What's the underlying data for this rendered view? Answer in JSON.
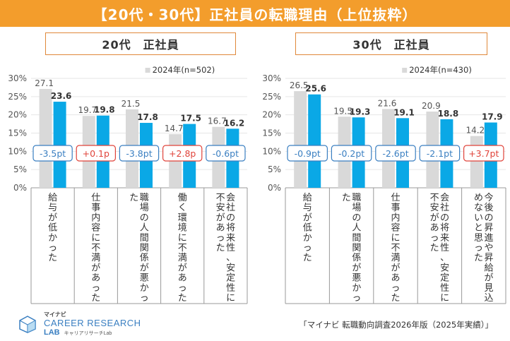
{
  "header": {
    "title": "【20代・30代】正社員の転職理由（上位抜粋）"
  },
  "colors": {
    "bar_2024": "#d9d9d9",
    "bar_2025": "#0aa8e6",
    "diff_negative": "#3a7fc1",
    "diff_positive": "#e0433a",
    "axis": "#999999",
    "header_bg": "#f39d2c"
  },
  "chart_data": [
    {
      "type": "bar",
      "title": "20代　正社員",
      "legend_label": "2024年(n=502)",
      "legend_placement": "top-right",
      "categories": [
        "給与が低かった",
        "仕事内容に不満があった",
        "職場の人間関係が悪かった",
        "働く環境に不満があった",
        "会社の将来性、安定性に不安があった"
      ],
      "series": [
        {
          "name": "2024年(n=502)",
          "values": [
            27.1,
            19.7,
            21.5,
            14.7,
            16.7
          ]
        },
        {
          "values": [
            23.6,
            19.8,
            17.8,
            17.5,
            16.2
          ]
        }
      ],
      "differences": [
        "-3.5pt",
        "+0.1p",
        "-3.8pt",
        "+2.8p",
        "-0.6pt"
      ],
      "yticks": [
        "0%",
        "5%",
        "10%",
        "15%",
        "20%",
        "25%",
        "30%"
      ],
      "ylim": [
        0,
        30
      ]
    },
    {
      "type": "bar",
      "title": "30代　正社員",
      "legend_label": "2024年(n=430)",
      "legend_placement": "top-right",
      "categories": [
        "給与が低かった",
        "職場の人間関係が悪かった",
        "仕事内容に不満があった",
        "会社の将来性、安定性に不安があった",
        "今後の昇進や昇給が見込めないと思った"
      ],
      "series": [
        {
          "name": "2024年(n=430)",
          "values": [
            26.5,
            19.5,
            21.6,
            20.9,
            14.2
          ]
        },
        {
          "values": [
            25.6,
            19.3,
            19.1,
            18.8,
            17.9
          ]
        }
      ],
      "differences": [
        "-0.9pt",
        "-0.2pt",
        "-2.6pt",
        "-2.1pt",
        "+3.7pt"
      ],
      "yticks": [
        "0%",
        "5%",
        "10%",
        "15%",
        "20%",
        "25%",
        "30%"
      ],
      "ylim": [
        0,
        30
      ]
    }
  ],
  "footer": {
    "logo_small": "マイナビ",
    "logo_main": "CAREER RESEARCH",
    "logo_sub": "LAB",
    "logo_sub_kana": "キャリアリサーチLab",
    "source": "「マイナビ 転職動向調査2026年版（2025年実績）」"
  }
}
